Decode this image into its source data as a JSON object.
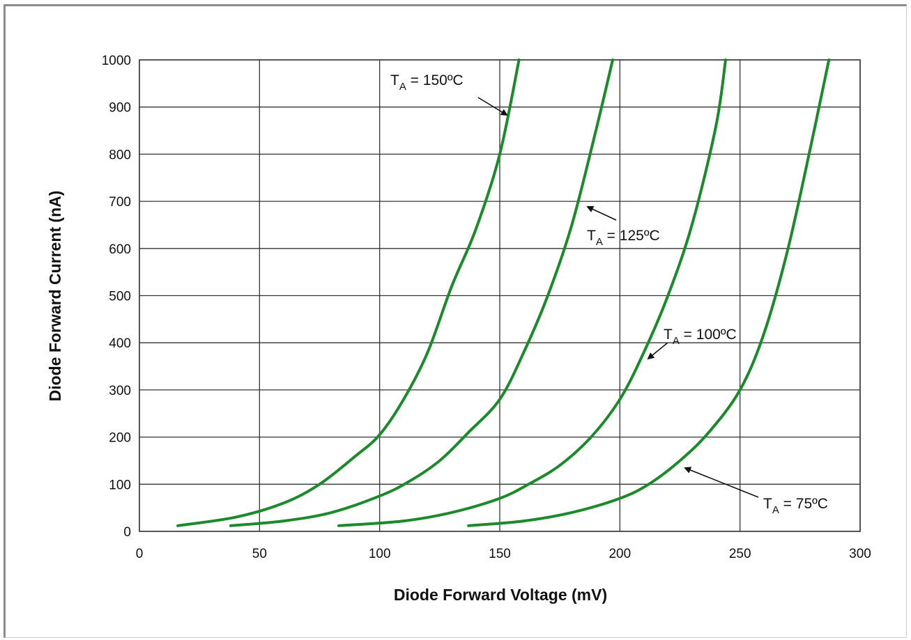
{
  "chart_data": {
    "type": "line",
    "title": "",
    "xlabel": "Diode Forward Voltage (mV)",
    "ylabel": "Diode Forward Current (nA)",
    "xlim": [
      0,
      300
    ],
    "ylim": [
      0,
      1000
    ],
    "x_ticks": [
      0,
      50,
      100,
      150,
      200,
      250,
      300
    ],
    "y_ticks": [
      0,
      100,
      200,
      300,
      400,
      500,
      600,
      700,
      800,
      900,
      1000
    ],
    "grid": true,
    "line_color": "#1a8a2a",
    "series": [
      {
        "name": "TA = 150°C",
        "x": [
          16,
          40,
          60,
          75,
          90,
          100,
          110,
          120,
          130,
          140,
          150,
          158
        ],
        "y": [
          12,
          30,
          60,
          100,
          160,
          205,
          280,
          380,
          520,
          640,
          800,
          1000
        ]
      },
      {
        "name": "TA = 125°C",
        "x": [
          38,
          60,
          80,
          100,
          112,
          125,
          137,
          150,
          160,
          170,
          180,
          190,
          197
        ],
        "y": [
          12,
          22,
          40,
          75,
          105,
          150,
          210,
          280,
          380,
          500,
          650,
          850,
          1000
        ]
      },
      {
        "name": "TA = 100°C",
        "x": [
          83,
          110,
          130,
          150,
          162,
          175,
          188,
          200,
          210,
          220,
          230,
          240,
          244
        ],
        "y": [
          12,
          22,
          40,
          70,
          100,
          140,
          200,
          280,
          380,
          500,
          650,
          860,
          1000
        ]
      },
      {
        "name": "TA = 75°C",
        "x": [
          137,
          160,
          180,
          200,
          212,
          225,
          237,
          250,
          260,
          270,
          280,
          287
        ],
        "y": [
          12,
          22,
          40,
          70,
          100,
          150,
          210,
          300,
          420,
          600,
          830,
          1000
        ]
      }
    ],
    "annotations": [
      {
        "main": "T",
        "sub": "A",
        "rest": " = 150ºC"
      },
      {
        "main": "T",
        "sub": "A",
        "rest": " = 125ºC"
      },
      {
        "main": "T",
        "sub": "A",
        "rest": " = 100ºC"
      },
      {
        "main": "T",
        "sub": "A",
        "rest": " = 75ºC"
      }
    ]
  }
}
